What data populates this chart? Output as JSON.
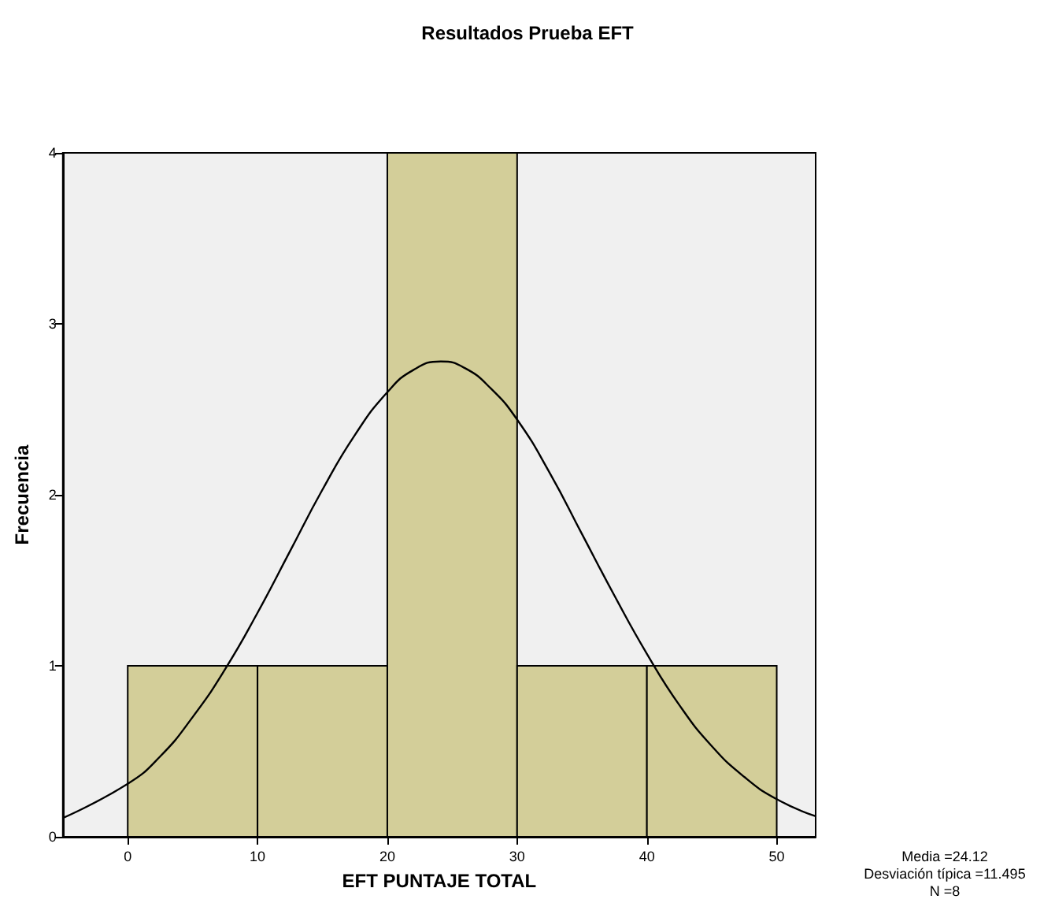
{
  "chart_data": {
    "type": "histogram",
    "title": "Resultados Prueba EFT",
    "xlabel": "EFT PUNTAJE TOTAL",
    "ylabel": "Frecuencia",
    "bins": [
      0,
      10,
      20,
      30,
      40,
      50
    ],
    "values": [
      1,
      1,
      4,
      1,
      1
    ],
    "color": "#d3ce99",
    "series": [
      {
        "type": "line",
        "color": "#000000",
        "x": [
          -5,
          0,
          2.5,
          5,
          7.5,
          10,
          12.5,
          15,
          17.5,
          20,
          22,
          24.12,
          26,
          28,
          30,
          32.5,
          35,
          37.5,
          40,
          42.5,
          45,
          47.5,
          50,
          53
        ],
        "values": [
          0.11,
          0.31,
          0.47,
          0.7,
          0.98,
          1.31,
          1.67,
          2.03,
          2.35,
          2.6,
          2.73,
          2.78,
          2.74,
          2.62,
          2.44,
          2.13,
          1.77,
          1.41,
          1.07,
          0.77,
          0.53,
          0.35,
          0.22,
          0.12
        ]
      }
    ],
    "marker": "none",
    "xlim": [
      -5,
      53
    ],
    "ylim": [
      0,
      4
    ],
    "xticks": [
      0,
      10,
      20,
      30,
      40,
      50
    ],
    "yticks": [
      0,
      1,
      2,
      3,
      4
    ],
    "grid": false,
    "legend": false,
    "annotations": [
      "Media =24.12",
      "Desviación típica =11.495",
      "N =8"
    ]
  }
}
